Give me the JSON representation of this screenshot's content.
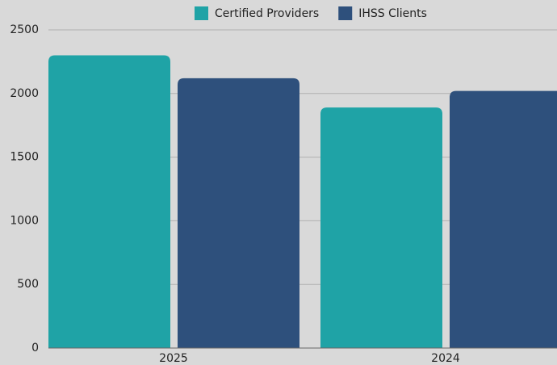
{
  "chart_data": {
    "type": "bar",
    "categories": [
      "2025",
      "2024"
    ],
    "series": [
      {
        "name": "Certified Providers",
        "color": "#1fa3a6",
        "values": [
          2300,
          1890
        ]
      },
      {
        "name": "IHSS Clients",
        "color": "#2e507c",
        "values": [
          2120,
          2020
        ]
      }
    ],
    "ylim": [
      0,
      2500
    ],
    "yticks": [
      0,
      500,
      1000,
      1500,
      2000,
      2500
    ],
    "grid": true,
    "legend": "top"
  }
}
